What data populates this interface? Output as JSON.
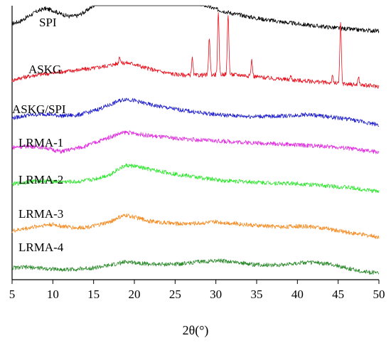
{
  "chart_data": {
    "type": "line",
    "title": "",
    "xlabel": "2θ(°)",
    "ylabel": "",
    "xlim": [
      5,
      50
    ],
    "xticks": [
      5,
      10,
      15,
      20,
      25,
      30,
      35,
      40,
      45,
      50
    ],
    "y_axis_visible": false,
    "grid": false,
    "legend": "none (labels written above each trace)",
    "series": [
      {
        "name": "SPI",
        "color": "#000000",
        "x": [
          5,
          6,
          7,
          8,
          9,
          10,
          11,
          12,
          13,
          14,
          15,
          16,
          17,
          18,
          19,
          19.5,
          20,
          21,
          22,
          24,
          26,
          28,
          30,
          32,
          35,
          38,
          41,
          44,
          47,
          50
        ],
        "y": [
          0.4,
          0.6,
          1.0,
          1.4,
          1.65,
          1.5,
          1.2,
          1.0,
          1.05,
          1.4,
          1.9,
          2.6,
          3.3,
          4.1,
          4.6,
          4.65,
          4.5,
          4.15,
          3.8,
          3.2,
          2.6,
          2.05,
          1.6,
          1.25,
          0.85,
          0.55,
          0.3,
          0.1,
          -0.1,
          -0.2
        ]
      },
      {
        "name": "ASKG",
        "color": "#e8121f",
        "x": [
          5,
          6,
          8,
          10,
          11,
          13,
          15,
          17,
          18,
          19,
          20,
          21,
          23,
          25,
          27,
          29,
          31,
          33,
          35,
          37,
          39,
          41,
          43,
          45,
          47,
          50
        ],
        "y": [
          0.3,
          0.5,
          0.75,
          0.9,
          1.0,
          1.15,
          1.3,
          1.55,
          1.7,
          1.75,
          1.65,
          1.4,
          1.05,
          0.8,
          0.7,
          0.75,
          0.8,
          0.75,
          0.6,
          0.45,
          0.35,
          0.25,
          0.15,
          0.05,
          -0.05,
          -0.2
        ],
        "peaks": [
          {
            "x": 18.2,
            "height": 0.6
          },
          {
            "x": 27.1,
            "height": 1.4
          },
          {
            "x": 29.2,
            "height": 3.1
          },
          {
            "x": 30.3,
            "height": 5.0
          },
          {
            "x": 31.5,
            "height": 5.0
          },
          {
            "x": 34.4,
            "height": 1.3
          },
          {
            "x": 39.2,
            "height": 0.3
          },
          {
            "x": 44.3,
            "height": 0.5
          },
          {
            "x": 45.3,
            "height": 5.0
          },
          {
            "x": 47.5,
            "height": 0.6
          }
        ]
      },
      {
        "name": "ASKG/SPI",
        "color": "#1c1ccc",
        "x": [
          5,
          7,
          9,
          11,
          13,
          15,
          17,
          18,
          19,
          20,
          22,
          25,
          28,
          31,
          34,
          37,
          40,
          41,
          42,
          44,
          46,
          48,
          50
        ],
        "y": [
          0.35,
          0.6,
          0.7,
          0.55,
          0.6,
          0.95,
          1.45,
          1.75,
          1.95,
          1.8,
          1.45,
          1.1,
          0.8,
          0.6,
          0.5,
          0.5,
          0.6,
          0.65,
          0.6,
          0.45,
          0.3,
          0.05,
          -0.2
        ]
      },
      {
        "name": "LRMA-1",
        "color": "#e12be0",
        "x": [
          5,
          7,
          9,
          10,
          11,
          12,
          14,
          16,
          18,
          19,
          20,
          22,
          25,
          28,
          31,
          34,
          37,
          40,
          43,
          46,
          48,
          50
        ],
        "y": [
          0.35,
          0.45,
          0.35,
          0.15,
          0.0,
          0.15,
          0.45,
          0.95,
          1.45,
          1.6,
          1.5,
          1.3,
          1.1,
          0.95,
          0.85,
          0.75,
          0.65,
          0.55,
          0.45,
          0.3,
          0.1,
          -0.05
        ]
      },
      {
        "name": "LRMA-2",
        "color": "#2fe62f",
        "x": [
          5,
          7,
          9,
          11,
          13,
          15,
          17,
          18,
          19,
          20,
          22,
          25,
          28,
          31,
          34,
          37,
          40,
          43,
          46,
          50
        ],
        "y": [
          0.3,
          0.5,
          0.6,
          0.5,
          0.5,
          0.7,
          1.1,
          1.55,
          1.85,
          1.8,
          1.5,
          1.15,
          0.85,
          0.6,
          0.5,
          0.4,
          0.35,
          0.2,
          0.05,
          -0.3
        ]
      },
      {
        "name": "LRMA-3",
        "color": "#f58a1f",
        "x": [
          5,
          7,
          9,
          10,
          11,
          13,
          15,
          17,
          18,
          19,
          20,
          22,
          25,
          28,
          30,
          32,
          35,
          38,
          40,
          42,
          44,
          46,
          48,
          50
        ],
        "y": [
          0.2,
          0.45,
          0.7,
          0.75,
          0.6,
          0.45,
          0.6,
          0.95,
          1.3,
          1.5,
          1.35,
          1.0,
          0.8,
          0.85,
          0.95,
          0.85,
          0.65,
          0.55,
          0.6,
          0.55,
          0.35,
          0.1,
          -0.1,
          -0.3
        ]
      },
      {
        "name": "LRMA-4",
        "color": "#2a8a2a",
        "x": [
          5,
          7,
          9,
          11,
          13,
          15,
          17,
          18,
          19,
          20,
          22,
          25,
          28,
          30,
          32,
          35,
          38,
          40,
          42,
          44,
          46,
          48,
          50
        ],
        "y": [
          0.45,
          0.5,
          0.4,
          0.3,
          0.35,
          0.45,
          0.65,
          0.8,
          0.95,
          0.9,
          0.75,
          0.75,
          0.95,
          1.05,
          0.95,
          0.7,
          0.7,
          0.85,
          0.9,
          0.75,
          0.45,
          0.15,
          0.0
        ]
      }
    ]
  }
}
